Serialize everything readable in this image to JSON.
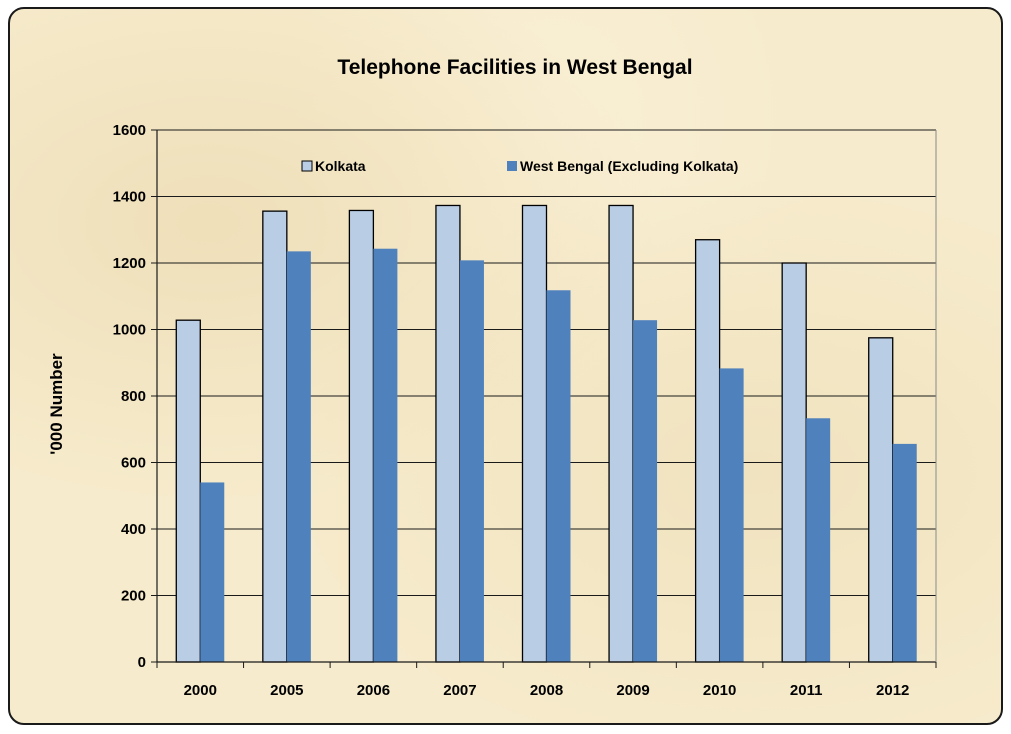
{
  "chart_data": {
    "type": "bar",
    "title": "Telephone Facilities in West Bengal",
    "xlabel": "",
    "ylabel": "'000 Number",
    "categories": [
      "2000",
      "2005",
      "2006",
      "2007",
      "2008",
      "2009",
      "2010",
      "2011",
      "2012"
    ],
    "series": [
      {
        "name": "Kolkata",
        "color": "#b9cde5",
        "values": [
          1028,
          1356,
          1358,
          1373,
          1373,
          1373,
          1270,
          1200,
          975
        ]
      },
      {
        "name": "West Bengal (Excluding Kolkata)",
        "color": "#4f81bd",
        "values": [
          540,
          1235,
          1243,
          1208,
          1118,
          1028,
          883,
          733,
          656
        ]
      }
    ],
    "ylim": [
      0,
      1600
    ],
    "yticks": [
      0,
      200,
      400,
      600,
      800,
      1000,
      1200,
      1400,
      1600
    ],
    "grid": true,
    "legend": "top"
  }
}
